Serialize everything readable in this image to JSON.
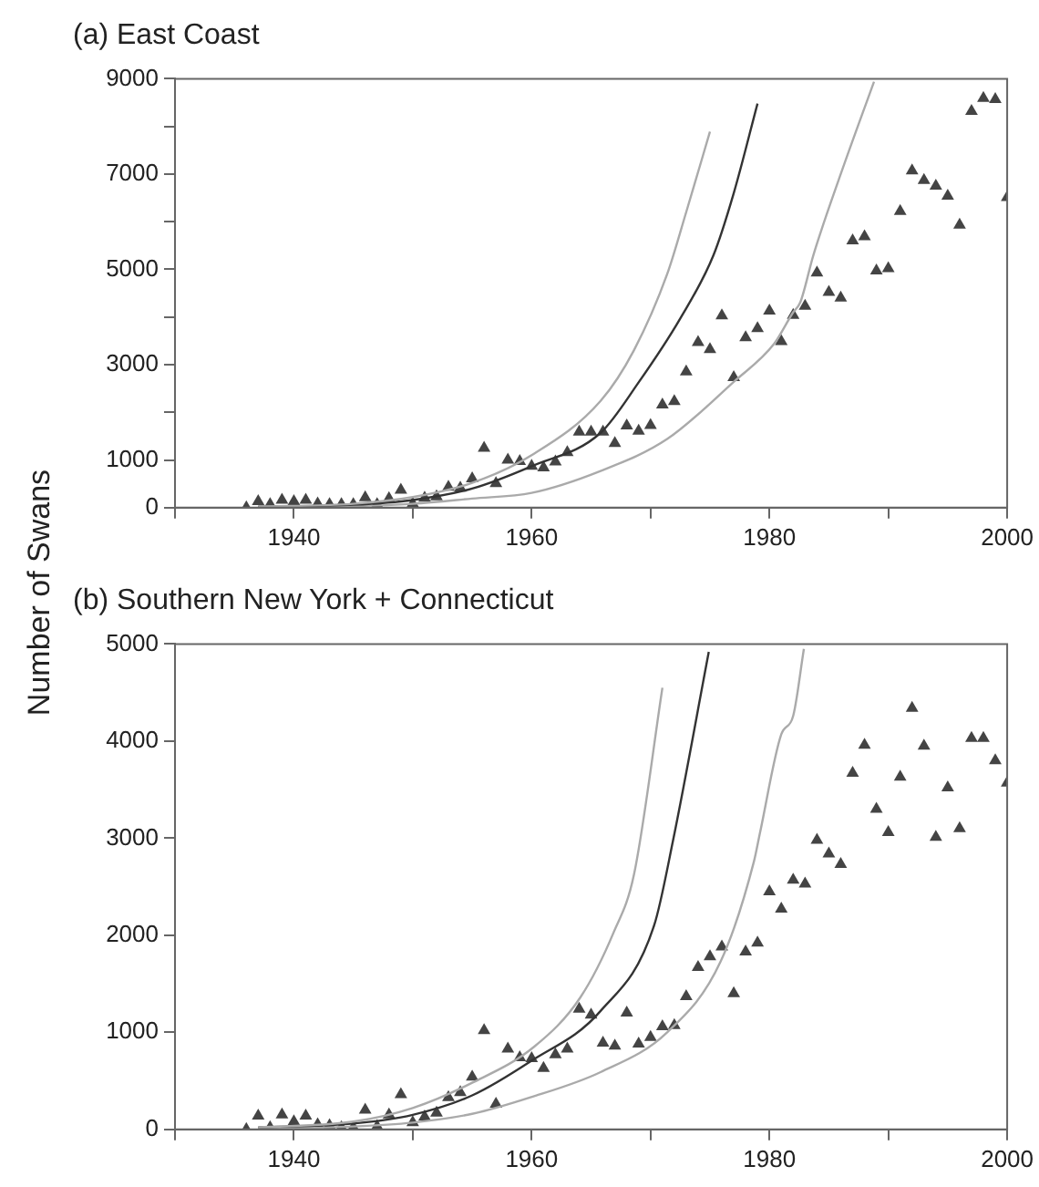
{
  "chart_data": [
    {
      "type": "scatter",
      "title": "(a) East Coast",
      "ylabel": "Number of Swans",
      "xlim": [
        1930,
        2000
      ],
      "xticks": [
        {
          "value": 1930,
          "label": null
        },
        1940,
        {
          "value": 1950,
          "label": null
        },
        1960,
        {
          "value": 1970,
          "label": null
        },
        1980,
        {
          "value": 1990,
          "label": null
        },
        2000
      ],
      "ylim": [
        0,
        9000
      ],
      "yticks": [
        0,
        1000,
        {
          "value": 2000,
          "label": null
        },
        3000,
        {
          "value": 4000,
          "label": null
        },
        5000,
        {
          "value": 6000,
          "label": null
        },
        7000,
        {
          "value": 8000,
          "label": null
        },
        9000
      ],
      "grid": false,
      "legend": false,
      "series": [
        {
          "type": "scatter",
          "marker": "triangle",
          "color": "#444444",
          "x": [
            1936,
            1937,
            1938,
            1939,
            1940,
            1941,
            1942,
            1943,
            1944,
            1945,
            1946,
            1947,
            1948,
            1949,
            1950,
            1951,
            1952,
            1953,
            1954,
            1955,
            1956,
            1957,
            1958,
            1959,
            1960,
            1961,
            1962,
            1963,
            1964,
            1965,
            1966,
            1967,
            1968,
            1969,
            1970,
            1971,
            1972,
            1973,
            1974,
            1975,
            1976,
            1977,
            1978,
            1979,
            1980,
            1981,
            1982,
            1983,
            1984,
            1985,
            1986,
            1987,
            1988,
            1989,
            1990,
            1991,
            1992,
            1993,
            1994,
            1995,
            1996,
            1997,
            1998,
            1999,
            2000
          ],
          "values": [
            0,
            130,
            70,
            160,
            130,
            160,
            80,
            70,
            70,
            70,
            210,
            70,
            190,
            370,
            80,
            200,
            230,
            430,
            410,
            610,
            1250,
            510,
            1000,
            970,
            870,
            840,
            960,
            1160,
            1590,
            1590,
            1590,
            1350,
            1720,
            1610,
            1730,
            2160,
            2230,
            2850,
            3470,
            3320,
            4030,
            2730,
            3570,
            3760,
            4130,
            3490,
            4040,
            4230,
            4930,
            4520,
            4400,
            5600,
            5690,
            4970,
            5020,
            6220,
            7070,
            6870,
            6750,
            6540,
            5930,
            8320,
            8590,
            8570,
            6510
          ]
        },
        {
          "type": "line",
          "marker": "none",
          "color": "#aaaaaa",
          "x": [
            1937,
            1945,
            1950,
            1955,
            1960,
            1965.8,
            1968.6,
            1971.4,
            1973,
            1975
          ],
          "values": [
            20,
            80,
            220,
            520,
            1100,
            2240,
            3300,
            4900,
            6200,
            7890
          ]
        },
        {
          "type": "line",
          "marker": "none",
          "color": "#333333",
          "x": [
            1937,
            1945,
            1950,
            1955,
            1960,
            1965.8,
            1969,
            1972.5,
            1975.3,
            1977,
            1979
          ],
          "values": [
            20,
            60,
            160,
            400,
            870,
            1570,
            2630,
            3970,
            5300,
            6600,
            8480
          ]
        },
        {
          "type": "line",
          "marker": "none",
          "color": "#aaaaaa",
          "x": [
            1937,
            1945,
            1950,
            1955,
            1960,
            1965.8,
            1971.4,
            1977,
            1980.4,
            1982,
            1982.6,
            1983.7,
            1986,
            1988.8
          ],
          "values": [
            10,
            30,
            80,
            190,
            310,
            770,
            1440,
            2640,
            3440,
            4100,
            4310,
            5300,
            7000,
            8940
          ]
        }
      ]
    },
    {
      "type": "scatter",
      "title": "(b) Southern New York + Connecticut",
      "xlim": [
        1930,
        2000
      ],
      "xticks": [
        {
          "value": 1930,
          "label": null
        },
        1940,
        {
          "value": 1950,
          "label": null
        },
        1960,
        {
          "value": 1970,
          "label": null
        },
        1980,
        {
          "value": 1990,
          "label": null
        },
        2000
      ],
      "ylim": [
        0,
        5000
      ],
      "yticks": [
        0,
        1000,
        2000,
        3000,
        4000,
        5000
      ],
      "grid": false,
      "legend": false,
      "series": [
        {
          "type": "scatter",
          "marker": "triangle",
          "color": "#444444",
          "x": [
            1936,
            1937,
            1938,
            1939,
            1940,
            1941,
            1942,
            1943,
            1944,
            1945,
            1946,
            1947,
            1948,
            1949,
            1950,
            1951,
            1952,
            1953,
            1954,
            1955,
            1956,
            1957,
            1958,
            1959,
            1960,
            1961,
            1962,
            1963,
            1964,
            1965,
            1966,
            1967,
            1968,
            1969,
            1970,
            1971,
            1972,
            1973,
            1974,
            1975,
            1976,
            1977,
            1978,
            1979,
            1980,
            1981,
            1982,
            1983,
            1984,
            1985,
            1986,
            1987,
            1988,
            1989,
            1990,
            1991,
            1992,
            1993,
            1994,
            1995,
            1996,
            1997,
            1998,
            1999,
            2000
          ],
          "values": [
            0,
            140,
            20,
            150,
            80,
            140,
            50,
            40,
            20,
            20,
            200,
            30,
            150,
            360,
            70,
            130,
            170,
            330,
            380,
            540,
            1020,
            260,
            830,
            740,
            730,
            630,
            770,
            830,
            1240,
            1180,
            890,
            860,
            1200,
            880,
            950,
            1060,
            1070,
            1370,
            1670,
            1780,
            1880,
            1400,
            1830,
            1920,
            2450,
            2270,
            2570,
            2530,
            2980,
            2840,
            2730,
            3670,
            3960,
            3300,
            3060,
            3630,
            4340,
            3950,
            3010,
            3520,
            3100,
            4030,
            4030,
            3800,
            3570
          ]
        },
        {
          "type": "line",
          "marker": "none",
          "color": "#aaaaaa",
          "x": [
            1937,
            1945,
            1950,
            1955,
            1960.2,
            1964.1,
            1966.9,
            1968.6,
            1971
          ],
          "values": [
            20,
            80,
            220,
            480,
            850,
            1360,
            2030,
            2620,
            4550
          ]
        },
        {
          "type": "line",
          "marker": "none",
          "color": "#333333",
          "x": [
            1937,
            1945,
            1950,
            1955,
            1959.9,
            1965.8,
            1970.3,
            1971.9,
            1974.9
          ],
          "values": [
            20,
            60,
            150,
            350,
            700,
            1220,
            2100,
            2980,
            4920
          ]
        },
        {
          "type": "line",
          "marker": "none",
          "color": "#aaaaaa",
          "x": [
            1937,
            1945,
            1950,
            1955,
            1959.9,
            1965.8,
            1971.4,
            1975.9,
            1978.7,
            1979.2,
            1981,
            1982,
            1982.9
          ],
          "values": [
            10,
            30,
            70,
            160,
            330,
            590,
            1000,
            1730,
            2760,
            3050,
            4070,
            4260,
            4950
          ]
        }
      ]
    }
  ]
}
